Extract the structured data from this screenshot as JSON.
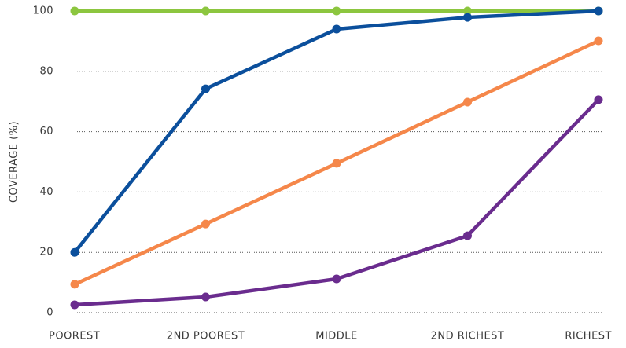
{
  "chart_data": {
    "type": "line",
    "y_label": "COVERAGE (%)",
    "categories": [
      "POOREST",
      "2ND POOREST",
      "MIDDLE",
      "2ND RICHEST",
      "RICHEST"
    ],
    "series": [
      {
        "color": "#8cc63f",
        "values": [
          100,
          100,
          100,
          100,
          100
        ]
      },
      {
        "color": "#f5874a",
        "values": [
          9.4,
          29.4,
          49.5,
          69.8,
          90.1
        ]
      },
      {
        "color": "#6a2c8e",
        "values": [
          2.6,
          5.2,
          11.2,
          25.5,
          70.6
        ]
      },
      {
        "color": "#0b4f9c",
        "values": [
          20,
          74.2,
          94,
          97.9,
          100
        ]
      }
    ],
    "ylim": [
      0,
      100
    ],
    "yticks": [
      0,
      20,
      40,
      60,
      80,
      100
    ],
    "grid": true
  }
}
